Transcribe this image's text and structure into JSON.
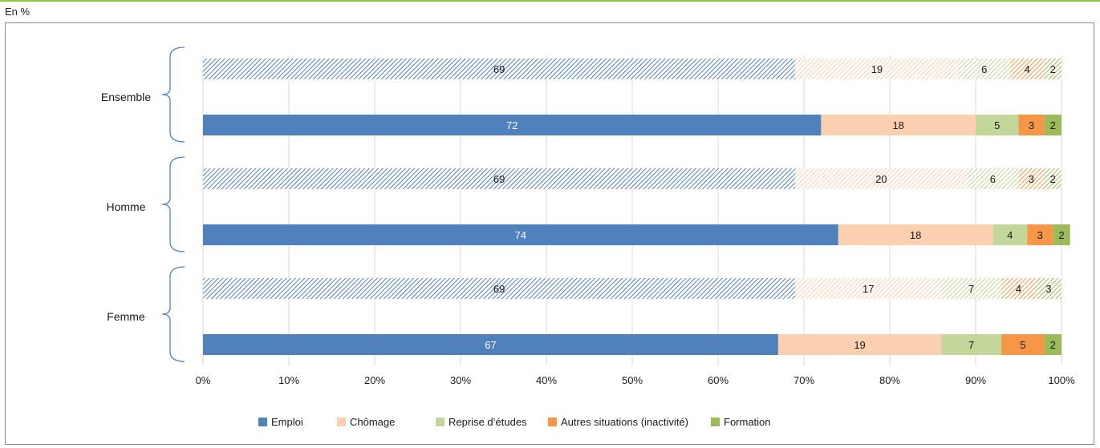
{
  "unit_label": "En %",
  "colors": {
    "Emploi": "#4f81bd",
    "Chômage": "#fad0b0",
    "Reprise d’études": "#c4d79b",
    "Autres situations (inactivité)": "#f79646",
    "Formation": "#9bbb59",
    "grid": "#d9d9d9",
    "brace": "#4f81bd",
    "top_rule": "#8dc63f"
  },
  "chart_data": {
    "type": "bar",
    "orientation": "horizontal",
    "stacked": true,
    "normalized_percent": true,
    "xlim": [
      0,
      100
    ],
    "xticks": [
      "0%",
      "10%",
      "20%",
      "30%",
      "40%",
      "50%",
      "60%",
      "70%",
      "80%",
      "90%",
      "100%"
    ],
    "grid": true,
    "legend_position": "bottom",
    "series_names": [
      "Emploi",
      "Chômage",
      "Reprise d’études",
      "Autres situations (inactivité)",
      "Formation"
    ],
    "groups": [
      {
        "label": "Ensemble",
        "bars": [
          {
            "style": "hatched",
            "values": [
              69,
              19,
              6,
              4,
              2
            ]
          },
          {
            "style": "solid",
            "values": [
              72,
              18,
              5,
              3,
              2
            ]
          }
        ]
      },
      {
        "label": "Homme",
        "bars": [
          {
            "style": "hatched",
            "values": [
              69,
              20,
              6,
              3,
              2
            ]
          },
          {
            "style": "solid",
            "values": [
              74,
              18,
              4,
              3,
              2
            ]
          }
        ]
      },
      {
        "label": "Femme",
        "bars": [
          {
            "style": "hatched",
            "values": [
              69,
              17,
              7,
              4,
              3
            ]
          },
          {
            "style": "solid",
            "values": [
              67,
              19,
              7,
              5,
              2
            ]
          }
        ]
      }
    ]
  }
}
